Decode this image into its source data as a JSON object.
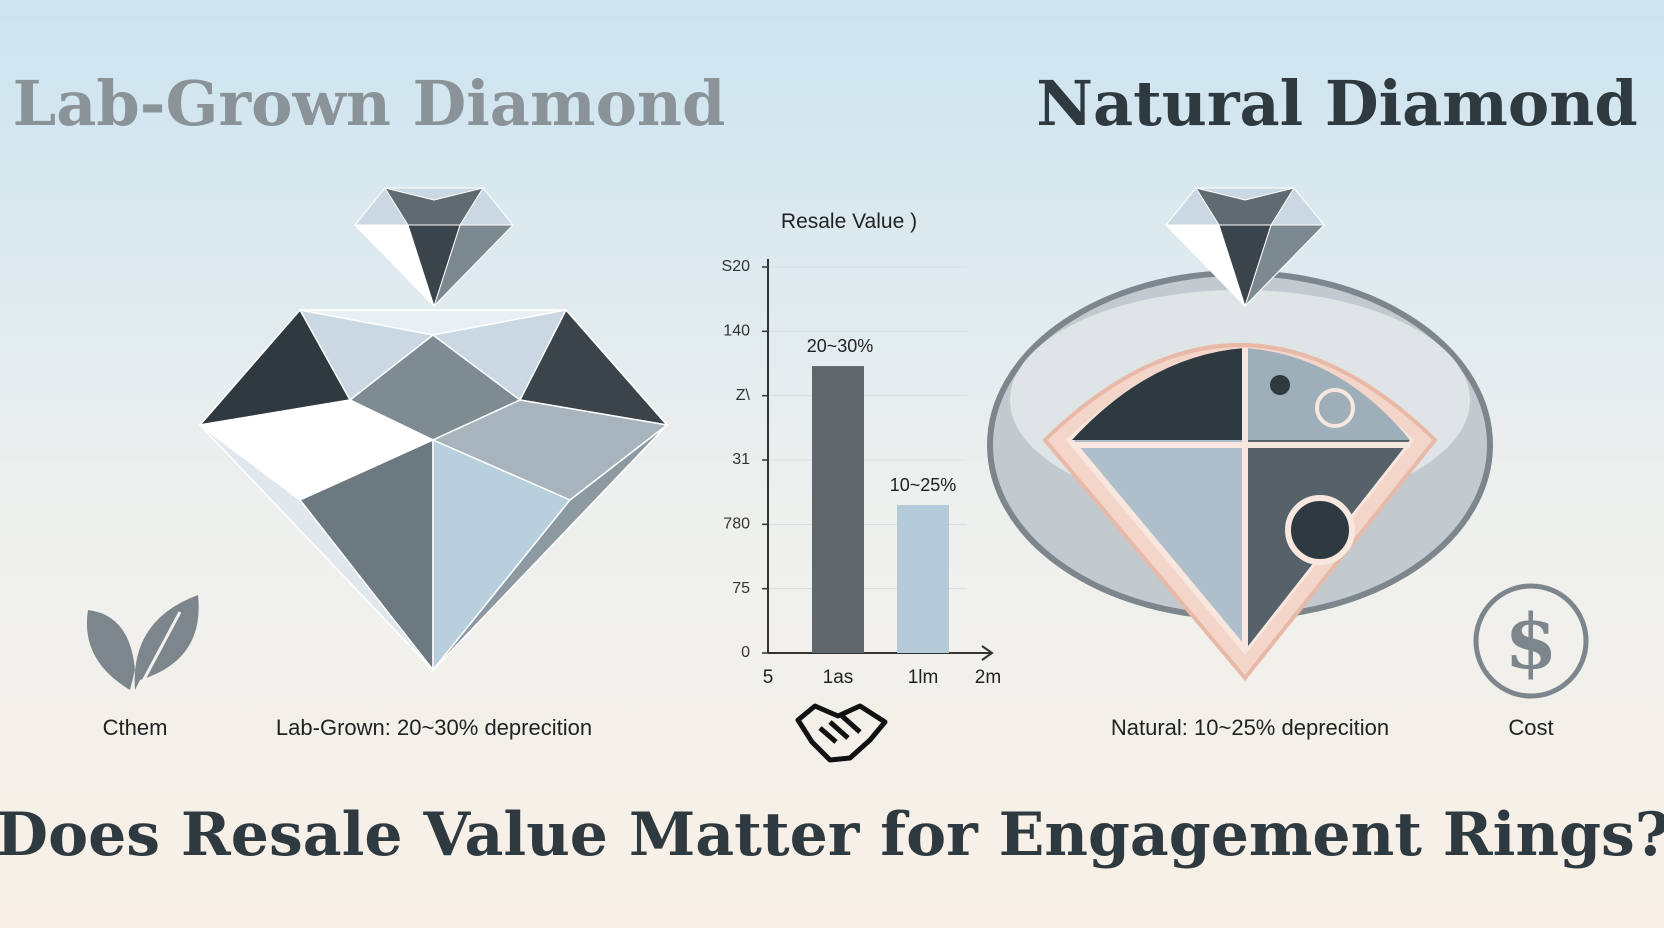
{
  "left_title": "Lab-Grown Diamond",
  "right_title": "Natural Diamond",
  "question": "Does Resale Value Matter for Engagement Rings?",
  "captions": [
    "Cthem",
    "Lab-Grown: 20~30% deprecition",
    "Natural: 10~25% deprecition",
    "Cost"
  ],
  "chart_data": {
    "type": "bar",
    "title": "Resale Value )",
    "categories": [
      "5",
      "1as",
      "1lm",
      "2m"
    ],
    "values": [
      null,
      4.46,
      2.3,
      null
    ],
    "colors": [
      "#5f676d",
      "#5f676d",
      "#b4cad8",
      "#5f676d"
    ],
    "annotations": [
      "20~30%",
      "10~25%"
    ],
    "ylim": [
      0,
      6
    ],
    "yticks": [
      {
        "value": 0,
        "label": "0"
      },
      {
        "value": 1,
        "label": "75"
      },
      {
        "value": 2,
        "label": "780"
      },
      {
        "value": 3,
        "label": "31"
      },
      {
        "value": 4,
        "label": "Z\\"
      },
      {
        "value": 5,
        "label": "140"
      },
      {
        "value": 6,
        "label": "S20"
      }
    ],
    "grid": true
  }
}
